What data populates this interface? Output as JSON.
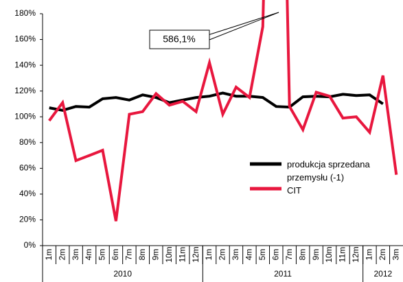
{
  "chart_data": {
    "type": "line",
    "categories": [
      "1m",
      "2m",
      "3m",
      "4m",
      "5m",
      "6m",
      "7m",
      "8m",
      "9m",
      "10m",
      "11m",
      "12m",
      "1m",
      "2m",
      "3m",
      "4m",
      "5m",
      "6m",
      "7m",
      "8m",
      "9m",
      "10m",
      "11m",
      "12m",
      "1m",
      "2m",
      "3m"
    ],
    "years": [
      "2010",
      "2011",
      "2012"
    ],
    "series": [
      {
        "name": "produkcja sprzedana przemysłu (-1)",
        "color": "#000000",
        "values": [
          107,
          105,
          108,
          107.5,
          114,
          115,
          113,
          117,
          115,
          111,
          113,
          115,
          116,
          118.5,
          116,
          116,
          115,
          108,
          107.5,
          115.5,
          116,
          115.5,
          117.5,
          116.5,
          117,
          110,
          null
        ]
      },
      {
        "name": "CIT",
        "color": "#e8173e",
        "values": [
          97,
          111,
          66,
          70,
          74,
          19,
          102,
          104,
          118,
          109,
          112,
          104,
          142,
          102,
          123,
          115,
          170,
          586.1,
          108,
          90,
          119,
          116,
          99,
          100,
          88,
          132,
          55
        ],
        "value_labels": [
          null,
          null,
          null,
          null,
          null,
          null,
          null,
          null,
          null,
          null,
          null,
          null,
          null,
          null,
          null,
          null,
          null,
          "586,1%",
          null,
          null,
          null,
          null,
          null,
          null,
          null,
          null,
          null
        ]
      }
    ],
    "ylim": [
      0,
      180
    ],
    "yticks": [
      {
        "value": 0,
        "label": "0%"
      },
      {
        "value": 20,
        "label": "20%"
      },
      {
        "value": 40,
        "label": "40%"
      },
      {
        "value": 60,
        "label": "60%"
      },
      {
        "value": 80,
        "label": "80%"
      },
      {
        "value": 100,
        "label": "100%"
      },
      {
        "value": 120,
        "label": "120%"
      },
      {
        "value": 140,
        "label": "140%"
      },
      {
        "value": 160,
        "label": "160%"
      },
      {
        "value": 180,
        "label": "180%"
      }
    ],
    "grid": false
  }
}
